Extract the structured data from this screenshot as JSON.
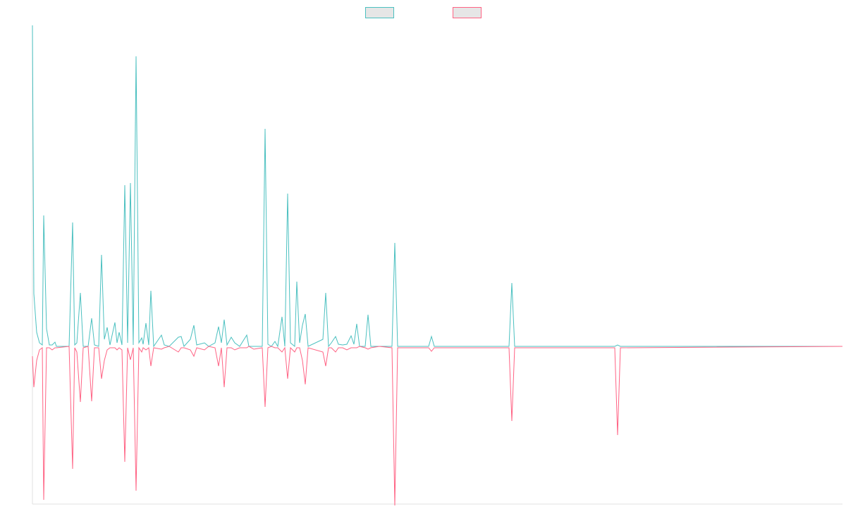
{
  "chart_data": {
    "type": "line",
    "x": [
      0,
      2,
      6,
      10,
      14,
      16,
      20,
      24,
      28,
      32,
      34,
      52,
      57,
      60,
      63,
      68,
      72,
      79,
      84,
      88,
      94,
      98,
      102,
      106,
      110,
      117,
      120,
      123,
      127,
      131,
      135,
      139,
      143,
      147,
      151,
      155,
      157,
      161,
      165,
      168,
      172,
      183,
      187,
      194,
      207,
      211,
      215,
      224,
      229,
      233,
      244,
      250,
      259,
      264,
      268,
      272,
      276,
      282,
      287,
      294,
      304,
      307,
      314,
      326,
      330,
      334,
      339,
      344,
      348,
      354,
      358,
      362,
      366,
      372,
      375,
      379,
      383,
      387,
      391,
      412,
      416,
      420,
      424,
      430,
      434,
      440,
      446,
      452,
      456,
      460,
      464,
      472,
      476,
      480,
      492,
      510,
      514,
      518,
      562,
      566,
      570,
      584,
      676,
      680,
      684,
      826,
      830,
      834,
      1149
    ],
    "series": [
      {
        "color": "#4bc0c0",
        "values": [
          456,
          75,
          20,
          5,
          2,
          186,
          25,
          2,
          2,
          6,
          0,
          0,
          176,
          2,
          5,
          76,
          0,
          0,
          40,
          2,
          0,
          130,
          10,
          27,
          2,
          34,
          5,
          20,
          2,
          229,
          5,
          232,
          2,
          412,
          5,
          12,
          3,
          33,
          2,
          79,
          0,
          16,
          2,
          0,
          13,
          14,
          0,
          10,
          30,
          2,
          5,
          0,
          5,
          28,
          5,
          38,
          2,
          13,
          5,
          0,
          16,
          0,
          0,
          0,
          309,
          3,
          0,
          7,
          0,
          42,
          0,
          217,
          5,
          0,
          92,
          5,
          30,
          46,
          0,
          10,
          76,
          0,
          5,
          14,
          3,
          2,
          3,
          15,
          3,
          32,
          0,
          0,
          45,
          0,
          0,
          0,
          147,
          0,
          0,
          14,
          0,
          0,
          0,
          90,
          0,
          0,
          2,
          0,
          0
        ]
      },
      {
        "color": "#ff6384",
        "values": [
          -14,
          -58,
          -20,
          -5,
          -2,
          -218,
          -2,
          -2,
          -5,
          -2,
          -2,
          0,
          -174,
          -2,
          -8,
          -79,
          -2,
          0,
          -78,
          -2,
          -2,
          -46,
          -20,
          -5,
          -2,
          -2,
          -5,
          -2,
          -5,
          -164,
          -2,
          -19,
          -2,
          -205,
          -2,
          -8,
          -2,
          -5,
          -2,
          -28,
          -2,
          -4,
          -2,
          0,
          -8,
          -2,
          -2,
          -5,
          -14,
          -2,
          -5,
          0,
          -2,
          -28,
          -2,
          -58,
          -2,
          -2,
          -5,
          -2,
          -2,
          0,
          -4,
          -2,
          -86,
          -2,
          0,
          -2,
          -2,
          -8,
          -2,
          -46,
          -2,
          -8,
          -2,
          -2,
          -20,
          -54,
          -2,
          -8,
          -28,
          -2,
          -2,
          -8,
          -2,
          -2,
          -5,
          -2,
          -2,
          -2,
          0,
          -2,
          -4,
          -2,
          0,
          -2,
          -226,
          -2,
          -2,
          -7,
          -2,
          -2,
          -2,
          -106,
          -2,
          -2,
          -126,
          -2,
          0
        ]
      }
    ],
    "xlim": [
      0,
      1149
    ],
    "ylim": [
      -224,
      456
    ]
  }
}
